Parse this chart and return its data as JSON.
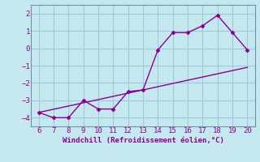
{
  "xlabel": "Windchill (Refroidissement éolien,°C)",
  "x_data": [
    6,
    7,
    8,
    9,
    10,
    11,
    12,
    13,
    14,
    15,
    16,
    17,
    18,
    19,
    20
  ],
  "y_main": [
    -3.7,
    -4.0,
    -4.0,
    -3.0,
    -3.5,
    -3.5,
    -2.5,
    -2.4,
    -0.1,
    0.9,
    0.9,
    1.3,
    1.9,
    0.9,
    -0.1
  ],
  "line_color": "#8b008b",
  "marker_color": "#8b008b",
  "background_color": "#c5e8f0",
  "grid_color": "#a0c8d8",
  "tick_label_color": "#8b008b",
  "ylim": [
    -4.5,
    2.5
  ],
  "xlim": [
    5.5,
    20.5
  ],
  "yticks": [
    -4,
    -3,
    -2,
    -1,
    0,
    1,
    2
  ],
  "xticks": [
    6,
    7,
    8,
    9,
    10,
    11,
    12,
    13,
    14,
    15,
    16,
    17,
    18,
    19,
    20
  ]
}
